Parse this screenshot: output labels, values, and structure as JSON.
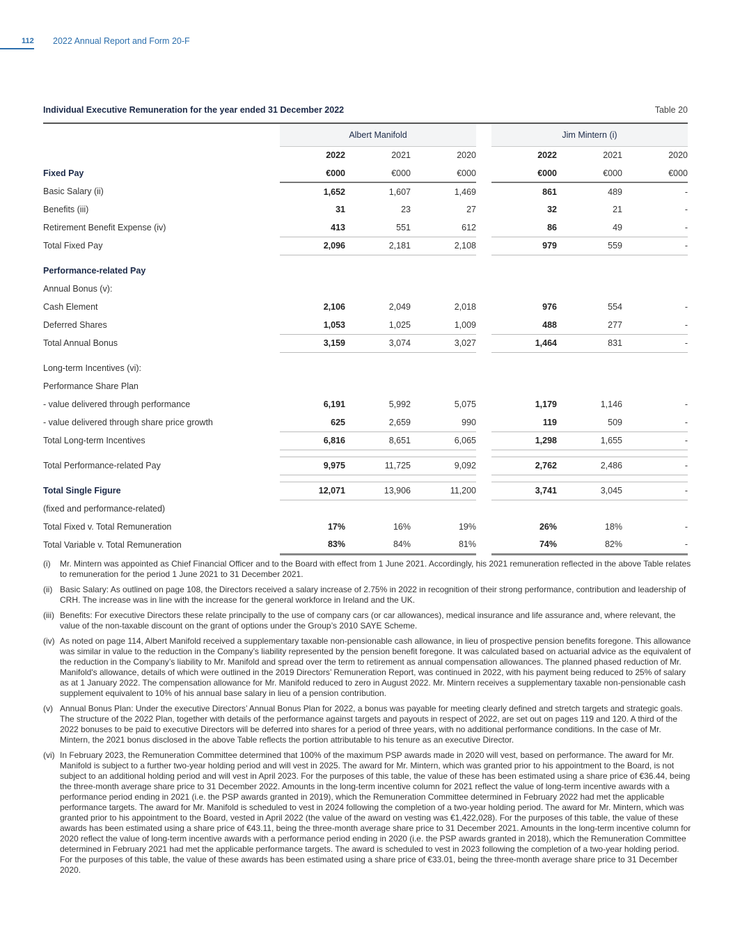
{
  "header": {
    "page_number": "112",
    "doc_title": "2022 Annual Report and Form 20-F"
  },
  "table": {
    "title": "Individual Executive Remuneration for the year ended 31 December 2022",
    "table_number": "Table 20",
    "groups": [
      "Albert Manifold",
      "Jim Mintern (i)"
    ],
    "years": [
      "2022",
      "2021",
      "2020",
      "2022",
      "2021",
      "2020"
    ],
    "rows": [
      {
        "type": "units",
        "label": "Fixed Pay",
        "bold": true,
        "values": [
          "€000",
          "€000",
          "€000",
          "€000",
          "€000",
          "€000"
        ]
      },
      {
        "type": "data",
        "label": "Basic Salary (ii)",
        "values": [
          "1,652",
          "1,607",
          "1,469",
          "861",
          "489",
          "-"
        ]
      },
      {
        "type": "data",
        "label": "Benefits (iii)",
        "values": [
          "31",
          "23",
          "27",
          "32",
          "21",
          "-"
        ]
      },
      {
        "type": "data",
        "label": "Retirement Benefit Expense (iv)",
        "values": [
          "413",
          "551",
          "612",
          "86",
          "49",
          "-"
        ]
      },
      {
        "type": "tot",
        "label": "Total Fixed Pay",
        "values": [
          "2,096",
          "2,181",
          "2,108",
          "979",
          "559",
          "-"
        ]
      },
      {
        "type": "gap"
      },
      {
        "type": "data",
        "label": "Performance-related Pay",
        "bold": true,
        "values": [
          "",
          "",
          "",
          "",
          "",
          ""
        ]
      },
      {
        "type": "data",
        "label": "Annual Bonus (v):",
        "values": [
          "",
          "",
          "",
          "",
          "",
          ""
        ]
      },
      {
        "type": "data",
        "label": "Cash Element",
        "values": [
          "2,106",
          "2,049",
          "2,018",
          "976",
          "554",
          "-"
        ]
      },
      {
        "type": "data",
        "label": "Deferred Shares",
        "values": [
          "1,053",
          "1,025",
          "1,009",
          "488",
          "277",
          "-"
        ]
      },
      {
        "type": "tot",
        "label": "Total Annual Bonus",
        "values": [
          "3,159",
          "3,074",
          "3,027",
          "1,464",
          "831",
          "-"
        ]
      },
      {
        "type": "gap"
      },
      {
        "type": "data",
        "label": "Long-term Incentives (vi):",
        "values": [
          "",
          "",
          "",
          "",
          "",
          ""
        ]
      },
      {
        "type": "data",
        "label": "Performance Share Plan",
        "values": [
          "",
          "",
          "",
          "",
          "",
          ""
        ]
      },
      {
        "type": "data",
        "label": "- value delivered through performance",
        "values": [
          "6,191",
          "5,992",
          "5,075",
          "1,179",
          "1,146",
          "-"
        ]
      },
      {
        "type": "data",
        "label": "- value delivered through share price growth",
        "values": [
          "625",
          "2,659",
          "990",
          "119",
          "509",
          "-"
        ]
      },
      {
        "type": "tot",
        "label": "Total Long-term Incentives",
        "values": [
          "6,816",
          "8,651",
          "6,065",
          "1,298",
          "1,655",
          "-"
        ]
      },
      {
        "type": "gapline"
      },
      {
        "type": "tot",
        "label": "Total Performance-related Pay",
        "values": [
          "9,975",
          "11,725",
          "9,092",
          "2,762",
          "2,486",
          "-"
        ]
      },
      {
        "type": "gapline"
      },
      {
        "type": "tot",
        "label": "Total Single Figure",
        "bold": true,
        "values": [
          "12,071",
          "13,906",
          "11,200",
          "3,741",
          "3,045",
          "-"
        ]
      },
      {
        "type": "data",
        "label": "(fixed and performance-related)",
        "values": [
          "",
          "",
          "",
          "",
          "",
          ""
        ]
      },
      {
        "type": "data",
        "label": "Total Fixed v. Total Remuneration",
        "values": [
          "17%",
          "16%",
          "19%",
          "26%",
          "18%",
          "-"
        ]
      },
      {
        "type": "last",
        "label": "Total Variable v. Total Remuneration",
        "values": [
          "83%",
          "84%",
          "81%",
          "74%",
          "82%",
          "-"
        ]
      }
    ]
  },
  "notes": [
    {
      "label": "(i)",
      "text": "Mr. Mintern was appointed as Chief Financial Officer and to the Board with effect from 1 June 2021. Accordingly, his 2021 remuneration reflected in the above Table relates to remuneration for the period 1 June 2021 to 31 December 2021."
    },
    {
      "label": "(ii)",
      "text": "Basic Salary: As outlined on page 108, the Directors received a salary increase of 2.75% in 2022 in recognition of their strong performance, contribution and leadership of CRH. The increase was in line with the increase for the general workforce in Ireland and the UK."
    },
    {
      "label": "(iii)",
      "text": "Benefits: For executive Directors these relate principally to the use of company cars (or car allowances), medical insurance and life assurance and, where relevant, the value of the non-taxable discount on the grant of options under the Group’s 2010 SAYE Scheme."
    },
    {
      "label": "(iv)",
      "text": "As noted on page 114, Albert Manifold received a supplementary taxable non-pensionable cash allowance, in lieu of prospective pension benefits foregone. This allowance was similar in value to the reduction in the Company’s liability represented by the pension benefit foregone. It was calculated based on actuarial advice as the equivalent of the reduction in the Company’s liability to Mr. Manifold and spread over the term to retirement as annual compensation allowances. The planned phased reduction of Mr. Manifold's allowance, details of which were outlined in the 2019 Directors’ Remuneration Report, was continued in 2022, with his payment being reduced to 25% of salary as at 1 January 2022. The compensation allowance for Mr. Manifold reduced to zero in August 2022. Mr. Mintern receives a supplementary taxable non-pensionable cash supplement equivalent to 10% of his annual base salary in lieu of a pension contribution."
    },
    {
      "label": "(v)",
      "text": "Annual Bonus Plan: Under the executive Directors’ Annual Bonus Plan for 2022, a bonus was payable for meeting clearly defined and stretch targets and strategic goals. The structure of the 2022 Plan, together with details of the performance against targets and payouts in respect of 2022, are set out on pages 119 and 120. A third of the 2022 bonuses to be paid to executive Directors will be deferred into shares for a period of three years, with no additional performance conditions. In the case of Mr. Mintern, the 2021 bonus disclosed in the above Table reflects the portion attributable to his tenure as an executive Director."
    },
    {
      "label": "(vi)",
      "text": "In February 2023, the Remuneration Committee determined that 100% of the maximum PSP awards made in 2020 will vest, based on performance. The award for Mr. Manifold is subject to a further two-year holding period and will vest in 2025. The award for Mr. Mintern, which was granted prior to his appointment to the Board, is not subject to an additional holding period and will vest in April 2023. For the purposes of this table, the value of these has been estimated using a share price of €36.44, being the three-month average share price to 31 December 2022. Amounts in the long-term incentive column for 2021 reflect the value of long-term incentive awards with a performance period ending in 2021 (i.e. the PSP awards granted in 2019), which the Remuneration Committee determined in February 2022 had met the applicable performance targets. The award for Mr. Manifold is scheduled to vest in 2024 following the completion of a two-year holding period. The award for Mr. Mintern, which was granted prior to his appointment to the Board, vested in April 2022 (the value of the award on vesting was €1,422,028). For the purposes of this table, the value of these awards has been estimated using a share price of €43.11, being the three-month average share price to 31 December 2021. Amounts in the long-term incentive column for 2020 reflect the value of long-term incentive awards with a performance period ending in 2020 (i.e. the PSP awards granted in 2018), which the Remuneration Committee determined in February 2021 had met the applicable performance targets. The award is scheduled to vest in 2023 following the completion of a two-year holding period. For the purposes of this table, the value of these awards has been estimated using a share price of €33.01, being the three-month average share price to 31 December 2020."
    }
  ]
}
